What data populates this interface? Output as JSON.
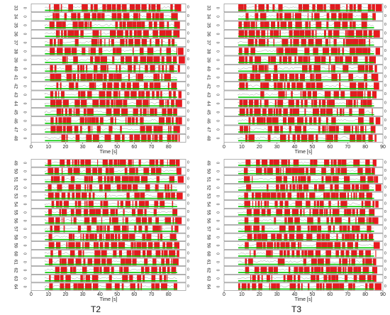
{
  "chart_data": [
    {
      "type": "raster",
      "xlabel": "Time [s]",
      "xlim": [
        0,
        90
      ],
      "xticks": [
        "0",
        "10",
        "20",
        "30",
        "40",
        "50",
        "60",
        "70",
        "80"
      ],
      "channels": [
        "33",
        "34",
        "35",
        "36",
        "37",
        "38",
        "39",
        "40",
        "41",
        "42",
        "43",
        "44",
        "45",
        "46",
        "47",
        "48"
      ],
      "zero_label": "0",
      "panel_label": ""
    },
    {
      "type": "raster",
      "xlabel": "Time [s]",
      "xlim": [
        0,
        90
      ],
      "xticks": [
        "0",
        "10",
        "20",
        "30",
        "40",
        "50",
        "60",
        "70",
        "80",
        "90"
      ],
      "channels": [
        "33",
        "34",
        "35",
        "36",
        "37",
        "38",
        "39",
        "40",
        "41",
        "42",
        "43",
        "44",
        "45",
        "46",
        "47",
        "48"
      ],
      "zero_label": "0",
      "panel_label": ""
    },
    {
      "type": "raster",
      "xlabel": "Time [s]",
      "xlim": [
        0,
        90
      ],
      "xticks": [
        "0",
        "10",
        "20",
        "30",
        "40",
        "50",
        "60",
        "70",
        "80"
      ],
      "channels": [
        "49",
        "50",
        "51",
        "52",
        "53",
        "54",
        "55",
        "56",
        "57",
        "58",
        "59",
        "60",
        "61",
        "62",
        "63",
        "64"
      ],
      "zero_label": "0",
      "panel_label": "T2"
    },
    {
      "type": "raster",
      "xlabel": "Time [s]",
      "xlim": [
        0,
        90
      ],
      "xticks": [
        "0",
        "10",
        "20",
        "30",
        "40",
        "50",
        "60",
        "70",
        "80",
        "90"
      ],
      "channels": [
        "49",
        "50",
        "51",
        "52",
        "53",
        "54",
        "55",
        "56",
        "57",
        "58",
        "59",
        "60",
        "61",
        "62",
        "63",
        "64"
      ],
      "zero_label": "0",
      "panel_label": "T3"
    }
  ],
  "colors": {
    "event": "#e8191e",
    "baseline": "#00cc00",
    "trace": "#555555",
    "frame": "#666666"
  }
}
